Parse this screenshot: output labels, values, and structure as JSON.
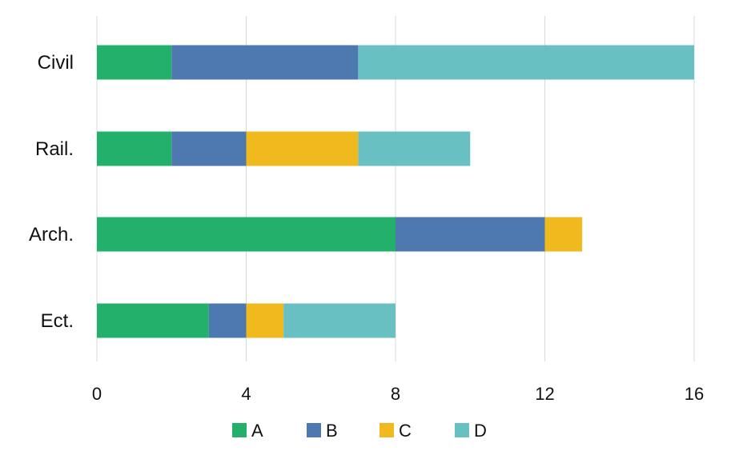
{
  "chart_data": {
    "type": "bar",
    "orientation": "horizontal",
    "stacked": true,
    "categories": [
      "Civil",
      "Rail.",
      "Arch.",
      "Ect."
    ],
    "series": [
      {
        "name": "A",
        "color": "#22b06b",
        "values": [
          2,
          2,
          8,
          3
        ]
      },
      {
        "name": "B",
        "color": "#4d78b0",
        "values": [
          5,
          2,
          4,
          1
        ]
      },
      {
        "name": "C",
        "color": "#f0b91e",
        "values": [
          0,
          3,
          1,
          1
        ]
      },
      {
        "name": "D",
        "color": "#68c0c2",
        "values": [
          9,
          3,
          0,
          3
        ]
      }
    ],
    "xlim": [
      0,
      16
    ],
    "xticks": [
      0,
      4,
      8,
      12,
      16
    ],
    "title": "",
    "xlabel": "",
    "ylabel": "",
    "grid": "vertical",
    "legend": "bottom-center"
  }
}
